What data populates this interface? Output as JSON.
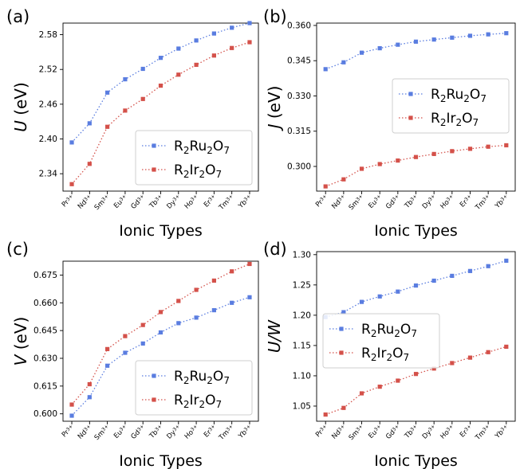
{
  "x_axis_label": "Ionic Types",
  "chart_data": [
    {
      "type": "line",
      "panel_label": "(a)",
      "categories": [
        "Pr³⁺",
        "Nd³⁺",
        "Sm³⁺",
        "Eu³⁺",
        "Gd³⁺",
        "Tb³⁺",
        "Dy³⁺",
        "Ho³⁺",
        "Er³⁺",
        "Tm³⁺",
        "Yb³⁺"
      ],
      "xlabel": "Ionic Types",
      "ylabel_var": "U",
      "ylabel_unit": "(eV)",
      "ylim": [
        2.31,
        2.6
      ],
      "yticks": [
        2.34,
        2.4,
        2.46,
        2.52,
        2.58
      ],
      "ytick_labels": [
        "2.34",
        "2.40",
        "2.46",
        "2.52",
        "2.58"
      ],
      "legend_position": "lower-right",
      "series": [
        {
          "name": "R₂Ru₂O₇",
          "color": "#5a7de0",
          "values": [
            2.394,
            2.427,
            2.48,
            2.503,
            2.521,
            2.54,
            2.556,
            2.57,
            2.582,
            2.592,
            2.6
          ]
        },
        {
          "name": "R₂Ir₂O₇",
          "color": "#d4514a",
          "values": [
            2.322,
            2.357,
            2.421,
            2.449,
            2.469,
            2.492,
            2.511,
            2.528,
            2.544,
            2.557,
            2.567
          ]
        }
      ]
    },
    {
      "type": "line",
      "panel_label": "(b)",
      "categories": [
        "Pr³⁺",
        "Nd³⁺",
        "Sm³⁺",
        "Eu³⁺",
        "Gd³⁺",
        "Tb³⁺",
        "Dy³⁺",
        "Ho³⁺",
        "Er³⁺",
        "Tm³⁺",
        "Yb³⁺"
      ],
      "xlabel": "Ionic Types",
      "ylabel_var": "J",
      "ylabel_unit": "(eV)",
      "ylim": [
        0.2895,
        0.361
      ],
      "yticks": [
        0.3,
        0.315,
        0.33,
        0.345,
        0.36
      ],
      "ytick_labels": [
        "0.300",
        "0.315",
        "0.330",
        "0.345",
        "0.360"
      ],
      "legend_position": "center-right",
      "series": [
        {
          "name": "R₂Ru₂O₇",
          "color": "#5a7de0",
          "values": [
            0.3414,
            0.3443,
            0.3484,
            0.3503,
            0.3518,
            0.3531,
            0.354,
            0.3548,
            0.3556,
            0.3562,
            0.3567
          ]
        },
        {
          "name": "R₂Ir₂O₇",
          "color": "#d4514a",
          "values": [
            0.2915,
            0.2945,
            0.299,
            0.301,
            0.3025,
            0.304,
            0.3053,
            0.3065,
            0.3075,
            0.3084,
            0.309
          ]
        }
      ]
    },
    {
      "type": "line",
      "panel_label": "(c)",
      "categories": [
        "Pr³⁺",
        "Nd³⁺",
        "Sm³⁺",
        "Eu³⁺",
        "Gd³⁺",
        "Tb³⁺",
        "Dy³⁺",
        "Ho³⁺",
        "Er³⁺",
        "Tm³⁺",
        "Yb³⁺"
      ],
      "xlabel": "Ionic Types",
      "ylabel_var": "V",
      "ylabel_unit": "(eV)",
      "ylim": [
        0.596,
        0.6825
      ],
      "yticks": [
        0.6,
        0.615,
        0.63,
        0.645,
        0.66,
        0.675
      ],
      "ytick_labels": [
        "0.600",
        "0.615",
        "0.630",
        "0.645",
        "0.660",
        "0.675"
      ],
      "legend_position": "lower-right",
      "series": [
        {
          "name": "R₂Ru₂O₇",
          "color": "#5a7de0",
          "values": [
            0.599,
            0.609,
            0.626,
            0.633,
            0.638,
            0.644,
            0.649,
            0.652,
            0.656,
            0.66,
            0.663
          ]
        },
        {
          "name": "R₂Ir₂O₇",
          "color": "#d4514a",
          "values": [
            0.605,
            0.616,
            0.635,
            0.642,
            0.648,
            0.655,
            0.661,
            0.667,
            0.672,
            0.677,
            0.681
          ]
        }
      ]
    },
    {
      "type": "line",
      "panel_label": "(d)",
      "categories": [
        "Pr³⁺",
        "Nd³⁺",
        "Sm³⁺",
        "Eu³⁺",
        "Gd³⁺",
        "Tb³⁺",
        "Dy³⁺",
        "Ho³⁺",
        "Er³⁺",
        "Tm³⁺",
        "Yb³⁺"
      ],
      "xlabel": "Ionic Types",
      "ylabel_var": "U/W",
      "ylabel_unit": "",
      "ylim": [
        1.025,
        1.305
      ],
      "yticks": [
        1.05,
        1.1,
        1.15,
        1.2,
        1.25,
        1.3
      ],
      "ytick_labels": [
        "1.05",
        "1.10",
        "1.15",
        "1.20",
        "1.25",
        "1.30"
      ],
      "legend_position": "center-left",
      "series": [
        {
          "name": "R₂Ru₂O₇",
          "color": "#5a7de0",
          "values": [
            1.197,
            1.205,
            1.222,
            1.231,
            1.239,
            1.249,
            1.257,
            1.265,
            1.273,
            1.281,
            1.29
          ]
        },
        {
          "name": "R₂Ir₂O₇",
          "color": "#d4514a",
          "values": [
            1.036,
            1.047,
            1.071,
            1.082,
            1.092,
            1.103,
            1.112,
            1.121,
            1.13,
            1.139,
            1.148
          ]
        }
      ]
    }
  ]
}
